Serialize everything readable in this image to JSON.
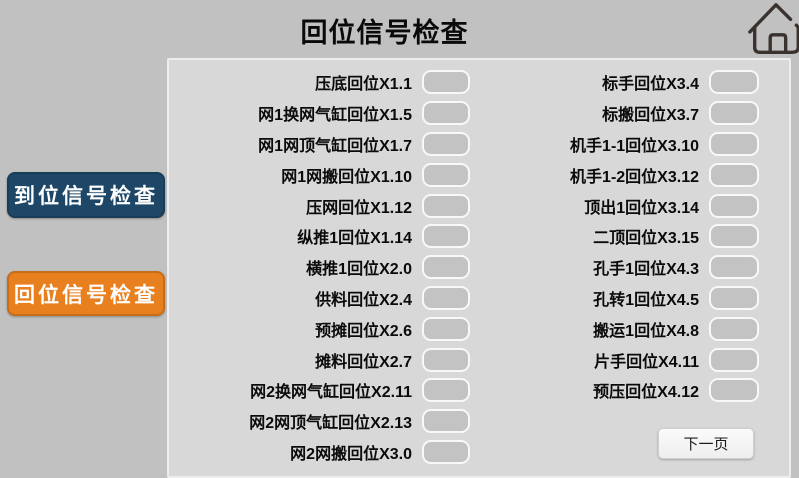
{
  "title": "回位信号检查",
  "colors": {
    "page_bg": "#C1C1C1",
    "panel_bg": "#D8D8D8",
    "indicator_fill": "#C3C3C3",
    "arrival_button_bg": "#1E4767",
    "return_button_bg": "#E9801F",
    "home_icon_stroke": "#3A322E"
  },
  "sidebar": {
    "buttons": [
      {
        "id": "arrival",
        "label": "到位信号检查",
        "color": "#1E4767"
      },
      {
        "id": "return",
        "label": "回位信号检查",
        "color": "#E9801F"
      }
    ]
  },
  "signals": {
    "left": [
      "压底回位X1.1",
      "网1换网气缸回位X1.5",
      "网1网顶气缸回位X1.7",
      "网1网搬回位X1.10",
      "压网回位X1.12",
      "纵推1回位X1.14",
      "横推1回位X2.0",
      "供料回位X2.4",
      "预摊回位X2.6",
      "摊料回位X2.7",
      "网2换网气缸回位X2.11",
      "网2网顶气缸回位X2.13",
      "网2网搬回位X3.0"
    ],
    "right": [
      "标手回位X3.4",
      "标搬回位X3.7",
      "机手1-1回位X3.10",
      "机手1-2回位X3.12",
      "顶出1回位X3.14",
      "二顶回位X3.15",
      "孔手1回位X4.3",
      "孔转1回位X4.5",
      "搬运1回位X4.8",
      "片手回位X4.11",
      "预压回位X4.12"
    ]
  },
  "pager": {
    "next_label": "下一页"
  }
}
